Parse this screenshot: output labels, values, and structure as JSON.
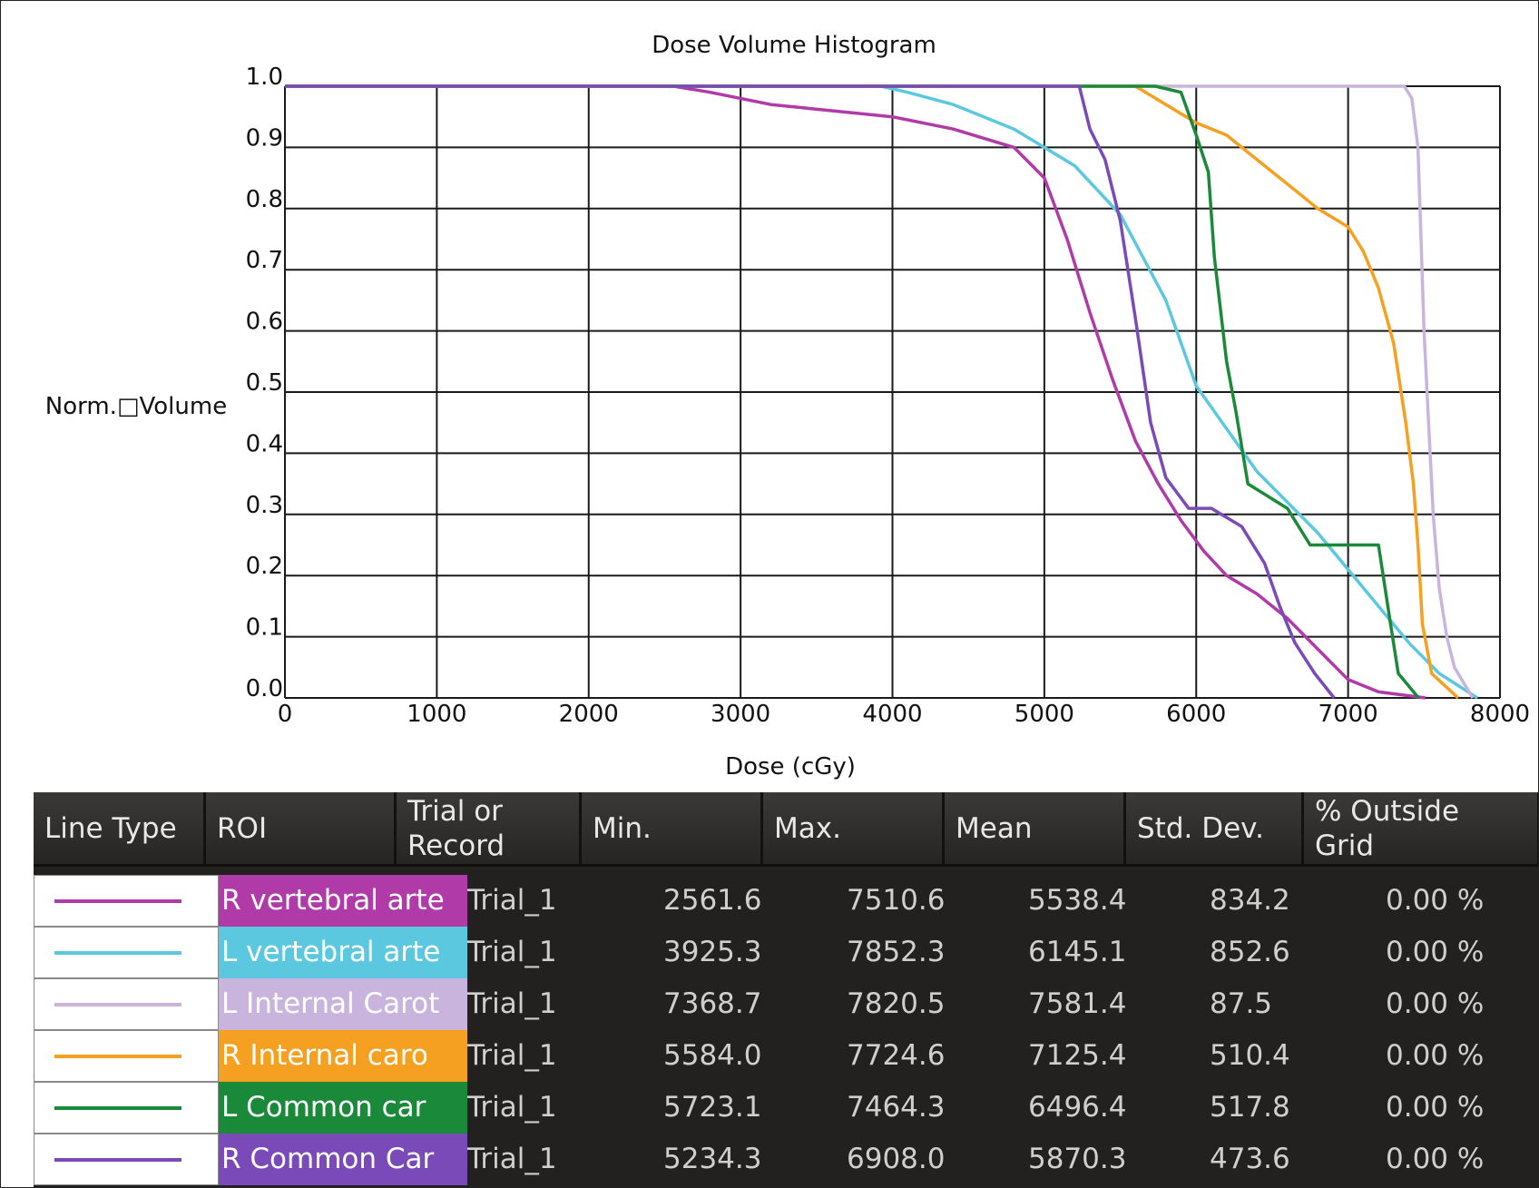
{
  "chart_data": {
    "type": "line",
    "title": "Dose Volume Histogram",
    "xlabel": "Dose (cGy)",
    "ylabel": "Norm.□Volume",
    "xlim": [
      0,
      8000
    ],
    "ylim": [
      0,
      1.0
    ],
    "x_ticks": [
      "0",
      "1000",
      "2000",
      "3000",
      "4000",
      "5000",
      "6000",
      "7000",
      "8000"
    ],
    "y_ticks": [
      "0.0",
      "0.1",
      "0.2",
      "0.3",
      "0.4",
      "0.5",
      "0.6",
      "0.7",
      "0.8",
      "0.9",
      "1.0"
    ],
    "grid": true,
    "series": [
      {
        "name": "R vertebral arte",
        "color": "#b03aa8",
        "points": [
          [
            0,
            1.0
          ],
          [
            2560,
            1.0
          ],
          [
            2800,
            0.99
          ],
          [
            3200,
            0.97
          ],
          [
            3600,
            0.96
          ],
          [
            4000,
            0.95
          ],
          [
            4400,
            0.93
          ],
          [
            4800,
            0.9
          ],
          [
            5000,
            0.85
          ],
          [
            5150,
            0.75
          ],
          [
            5300,
            0.63
          ],
          [
            5450,
            0.52
          ],
          [
            5600,
            0.42
          ],
          [
            5750,
            0.35
          ],
          [
            5900,
            0.29
          ],
          [
            6050,
            0.24
          ],
          [
            6200,
            0.2
          ],
          [
            6400,
            0.17
          ],
          [
            6600,
            0.13
          ],
          [
            6800,
            0.08
          ],
          [
            7000,
            0.03
          ],
          [
            7200,
            0.01
          ],
          [
            7510,
            0.0
          ]
        ]
      },
      {
        "name": "L vertebral arte",
        "color": "#5cc8e0",
        "points": [
          [
            0,
            1.0
          ],
          [
            3925,
            1.0
          ],
          [
            4100,
            0.99
          ],
          [
            4400,
            0.97
          ],
          [
            4800,
            0.93
          ],
          [
            5200,
            0.87
          ],
          [
            5500,
            0.79
          ],
          [
            5800,
            0.65
          ],
          [
            6000,
            0.51
          ],
          [
            6200,
            0.44
          ],
          [
            6400,
            0.37
          ],
          [
            6600,
            0.32
          ],
          [
            6800,
            0.27
          ],
          [
            7000,
            0.21
          ],
          [
            7200,
            0.15
          ],
          [
            7400,
            0.09
          ],
          [
            7600,
            0.04
          ],
          [
            7852,
            0.0
          ]
        ]
      },
      {
        "name": "L Internal Carot",
        "color": "#c8b4dc",
        "points": [
          [
            0,
            1.0
          ],
          [
            7370,
            1.0
          ],
          [
            7420,
            0.98
          ],
          [
            7460,
            0.9
          ],
          [
            7480,
            0.75
          ],
          [
            7500,
            0.6
          ],
          [
            7530,
            0.45
          ],
          [
            7560,
            0.3
          ],
          [
            7600,
            0.18
          ],
          [
            7650,
            0.1
          ],
          [
            7700,
            0.05
          ],
          [
            7820,
            0.0
          ]
        ]
      },
      {
        "name": "R Internal caro",
        "color": "#f5a020",
        "points": [
          [
            0,
            1.0
          ],
          [
            5600,
            1.0
          ],
          [
            5800,
            0.97
          ],
          [
            6000,
            0.94
          ],
          [
            6200,
            0.92
          ],
          [
            6400,
            0.88
          ],
          [
            6600,
            0.84
          ],
          [
            6800,
            0.8
          ],
          [
            7000,
            0.77
          ],
          [
            7100,
            0.73
          ],
          [
            7200,
            0.67
          ],
          [
            7300,
            0.58
          ],
          [
            7380,
            0.45
          ],
          [
            7430,
            0.35
          ],
          [
            7460,
            0.25
          ],
          [
            7490,
            0.12
          ],
          [
            7550,
            0.04
          ],
          [
            7724,
            0.0
          ]
        ]
      },
      {
        "name": "L Common car",
        "color": "#1a8a3a",
        "points": [
          [
            0,
            1.0
          ],
          [
            5730,
            1.0
          ],
          [
            5900,
            0.99
          ],
          [
            6000,
            0.92
          ],
          [
            6080,
            0.86
          ],
          [
            6120,
            0.72
          ],
          [
            6200,
            0.55
          ],
          [
            6260,
            0.47
          ],
          [
            6340,
            0.35
          ],
          [
            6600,
            0.31
          ],
          [
            6750,
            0.25
          ],
          [
            7200,
            0.25
          ],
          [
            7280,
            0.12
          ],
          [
            7330,
            0.04
          ],
          [
            7464,
            0.0
          ]
        ]
      },
      {
        "name": "R Common Car",
        "color": "#7a4ab8",
        "points": [
          [
            0,
            1.0
          ],
          [
            5230,
            1.0
          ],
          [
            5300,
            0.93
          ],
          [
            5400,
            0.88
          ],
          [
            5500,
            0.78
          ],
          [
            5600,
            0.62
          ],
          [
            5700,
            0.45
          ],
          [
            5800,
            0.36
          ],
          [
            5950,
            0.31
          ],
          [
            6100,
            0.31
          ],
          [
            6300,
            0.28
          ],
          [
            6450,
            0.22
          ],
          [
            6550,
            0.15
          ],
          [
            6650,
            0.09
          ],
          [
            6780,
            0.04
          ],
          [
            6908,
            0.0
          ]
        ]
      }
    ]
  },
  "table": {
    "headers": [
      "Line Type",
      "ROI",
      "Trial or\nRecord",
      "Min.",
      "Max.",
      "Mean",
      "Std. Dev.",
      "% Outside\nGrid"
    ],
    "rows": [
      {
        "color": "#b03aa8",
        "roi": "R vertebral arte",
        "trial": "Trial_1",
        "min": "2561.6",
        "max": "7510.6",
        "mean": "5538.4",
        "std": "834.2",
        "outside": "0.00 %"
      },
      {
        "color": "#5cc8e0",
        "roi": "L vertebral arte",
        "trial": "Trial_1",
        "min": "3925.3",
        "max": "7852.3",
        "mean": "6145.1",
        "std": "852.6",
        "outside": "0.00 %"
      },
      {
        "color": "#c8b4dc",
        "roi": "L Internal Carot",
        "trial": "Trial_1",
        "min": "7368.7",
        "max": "7820.5",
        "mean": "7581.4",
        "std": "87.5",
        "outside": "0.00 %"
      },
      {
        "color": "#f5a020",
        "roi": "R Internal caro",
        "trial": "Trial_1",
        "min": "5584.0",
        "max": "7724.6",
        "mean": "7125.4",
        "std": "510.4",
        "outside": "0.00 %"
      },
      {
        "color": "#1a8a3a",
        "roi": "L Common car",
        "trial": "Trial_1",
        "min": "5723.1",
        "max": "7464.3",
        "mean": "6496.4",
        "std": "517.8",
        "outside": "0.00 %"
      },
      {
        "color": "#7a4ab8",
        "roi": "R Common Car",
        "trial": "Trial_1",
        "min": "5234.3",
        "max": "6908.0",
        "mean": "5870.3",
        "std": "473.6",
        "outside": "0.00 %"
      }
    ]
  }
}
